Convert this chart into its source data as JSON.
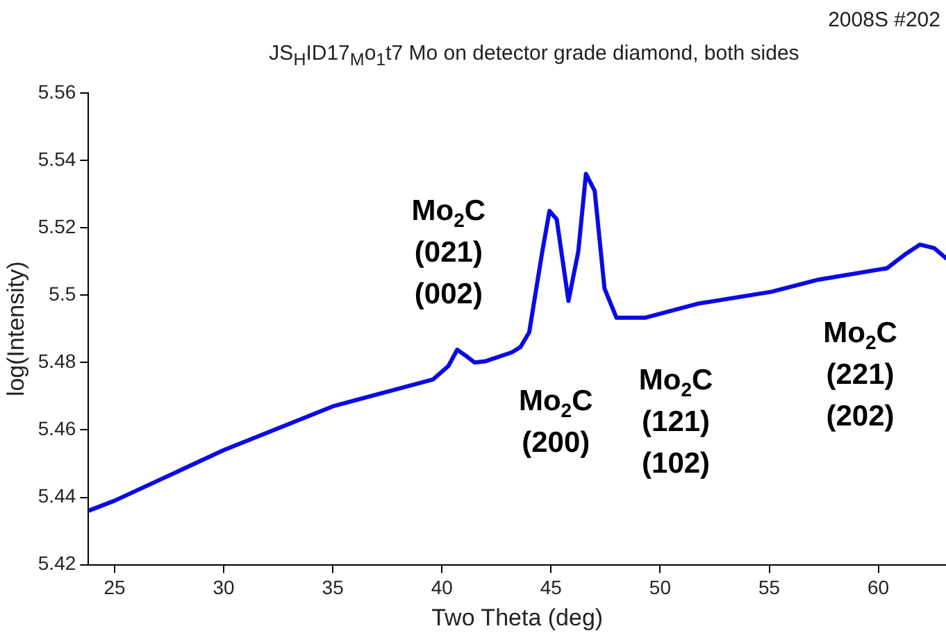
{
  "chart_data": {
    "type": "line",
    "title": "JS$_{H}$ID17$_{M}$o$_{1}$t7  Mo on detector grade diamond, both sides",
    "subtitle": "2008S   #202",
    "xlabel": "Two Theta (deg)",
    "ylabel": "log(Intensity)",
    "x": [
      23.8,
      25,
      30,
      35,
      39.6,
      40.3,
      40.7,
      41.1,
      41.5,
      42.0,
      43.2,
      43.6,
      44.0,
      44.6,
      44.93,
      45.26,
      45.8,
      46.25,
      46.6,
      47.0,
      47.45,
      48.0,
      49.3,
      51.75,
      55.1,
      57.25,
      60.4,
      61.2,
      61.9,
      62.55,
      63.1
    ],
    "series": [
      {
        "color": "#0a0ae6",
        "values": [
          5.436,
          5.439,
          5.454,
          5.467,
          5.475,
          5.479,
          5.4838,
          5.482,
          5.48,
          5.4804,
          5.483,
          5.4846,
          5.489,
          5.513,
          5.525,
          5.5225,
          5.4983,
          5.513,
          5.536,
          5.531,
          5.502,
          5.4933,
          5.4933,
          5.4975,
          5.501,
          5.5046,
          5.508,
          5.512,
          5.515,
          5.514,
          5.511
        ]
      }
    ],
    "xlim": [
      23.8,
      63.1
    ],
    "xticks": [
      25,
      30,
      35,
      40,
      45,
      50,
      55,
      60
    ],
    "ylim": [
      5.42,
      5.56
    ],
    "yticks": [
      5.42,
      5.44,
      5.46,
      5.48,
      5.5,
      5.52,
      5.54,
      5.56
    ],
    "grid": false,
    "legend": false,
    "marker": "none",
    "line_style": "solid",
    "annotations": [
      "Mo$_{2}$C\n(021)\n(002)",
      "Mo$_{2}$C\n(200)",
      "Mo$_{2}$C\n(121)\n(102)",
      "Mo$_{2}$C\n(221)\n(202)"
    ]
  }
}
